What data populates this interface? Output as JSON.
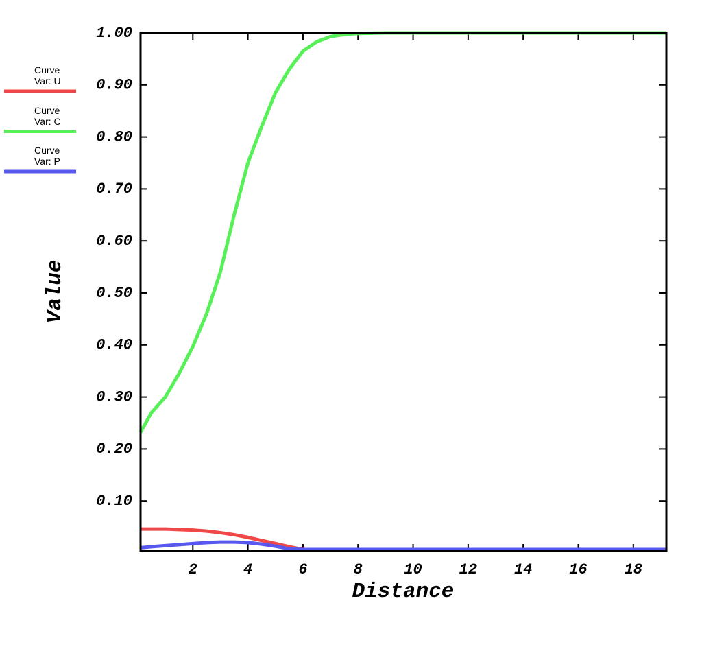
{
  "chart_data": {
    "type": "line",
    "x_label": "Distance",
    "y_label": "Value",
    "x": [
      0.1,
      0.5,
      1,
      1.5,
      2,
      2.5,
      3,
      3.5,
      4,
      4.5,
      5,
      5.5,
      6,
      6.5,
      7,
      7.5,
      8,
      9,
      10,
      12,
      14,
      16,
      18,
      19.2
    ],
    "series": [
      {
        "name": "Curve\nVar: U",
        "color": "#f04848",
        "values": [
          0.046,
          0.046,
          0.046,
          0.045,
          0.044,
          0.042,
          0.039,
          0.035,
          0.03,
          0.024,
          0.018,
          0.012,
          0.006,
          0.002,
          0,
          0,
          0,
          0,
          0,
          0,
          0,
          0,
          0,
          0
        ]
      },
      {
        "name": "Curve\nVar: C",
        "color": "#58f058",
        "values": [
          0.232,
          0.27,
          0.3,
          0.345,
          0.397,
          0.46,
          0.54,
          0.65,
          0.75,
          0.82,
          0.885,
          0.93,
          0.965,
          0.983,
          0.993,
          0.997,
          0.999,
          1.0,
          1.0,
          1.0,
          1.0,
          1.0,
          1.0,
          1.0
        ]
      },
      {
        "name": "Curve\nVar: P",
        "color": "#5858f0",
        "values": [
          0.01,
          0.012,
          0.014,
          0.016,
          0.018,
          0.02,
          0.021,
          0.021,
          0.02,
          0.017,
          0.013,
          0.008,
          0.004,
          0.001,
          0,
          0,
          0,
          0,
          0,
          0,
          0,
          0,
          0,
          0
        ]
      }
    ],
    "xlim": [
      0.1,
      19.2
    ],
    "ylim": [
      0,
      1.0
    ],
    "xticks": [
      2,
      4,
      6,
      8,
      10,
      12,
      14,
      16,
      18
    ],
    "yticks": [
      {
        "value": 0.1,
        "label": "0.10"
      },
      {
        "value": 0.2,
        "label": "0.20"
      },
      {
        "value": 0.3,
        "label": "0.30"
      },
      {
        "value": 0.4,
        "label": "0.40"
      },
      {
        "value": 0.5,
        "label": "0.50"
      },
      {
        "value": 0.6,
        "label": "0.60"
      },
      {
        "value": 0.7,
        "label": "0.70"
      },
      {
        "value": 0.8,
        "label": "0.80"
      },
      {
        "value": 0.9,
        "label": "0.90"
      },
      {
        "value": 1.0,
        "label": "1.00"
      }
    ],
    "grid": false,
    "legend": "left"
  }
}
